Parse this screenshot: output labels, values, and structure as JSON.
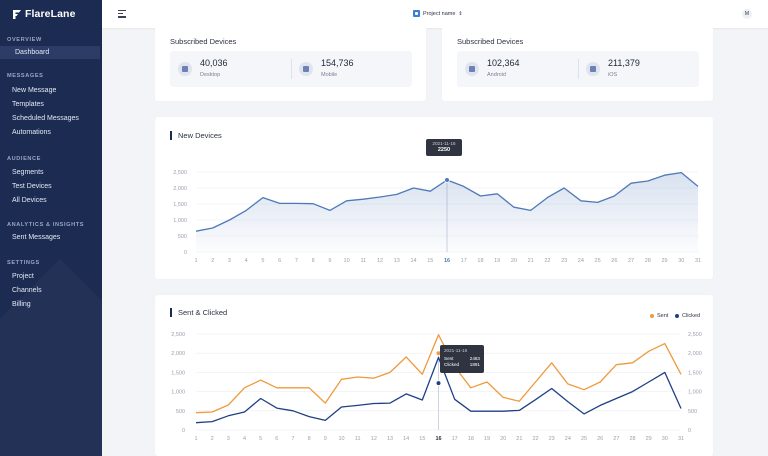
{
  "app": {
    "name": "FlareLane"
  },
  "sidebar": {
    "sections": [
      {
        "label": "OVERVIEW",
        "items": [
          {
            "label": "Dashboard",
            "active": true
          }
        ]
      },
      {
        "label": "MESSAGES",
        "items": [
          {
            "label": "New Message"
          },
          {
            "label": "Templates"
          },
          {
            "label": "Scheduled Messages"
          },
          {
            "label": "Automations"
          }
        ]
      },
      {
        "label": "AUDIENCE",
        "items": [
          {
            "label": "Segments"
          },
          {
            "label": "Test Devices"
          },
          {
            "label": "All Devices"
          }
        ]
      },
      {
        "label": "ANALYTICS & INSIGHTS",
        "items": [
          {
            "label": "Sent Messages"
          }
        ]
      },
      {
        "label": "SETTINGS",
        "items": [
          {
            "label": "Project"
          },
          {
            "label": "Channels"
          },
          {
            "label": "Billing"
          }
        ]
      }
    ]
  },
  "topbar": {
    "project_label": "Project name",
    "avatar_initial": "M"
  },
  "subscribed": [
    {
      "title": "Subscribed Devices",
      "stats": [
        {
          "value": "40,036",
          "label": "Desktop",
          "icon": "desktop-icon"
        },
        {
          "value": "154,736",
          "label": "Mobile",
          "icon": "mobile-icon"
        }
      ]
    },
    {
      "title": "Subscribed Devices",
      "stats": [
        {
          "value": "102,364",
          "label": "Android",
          "icon": "android-icon"
        },
        {
          "value": "211,379",
          "label": "iOS",
          "icon": "apple-icon"
        }
      ]
    }
  ],
  "new_devices": {
    "title": "New Devices",
    "tooltip": {
      "date": "2021-11-16",
      "value": "2250"
    },
    "highlight_index": 15
  },
  "sent_clicked": {
    "title": "Sent & Clicked",
    "legend": {
      "sent": "Sent",
      "clicked": "Clicked"
    },
    "tooltip": {
      "date": "2021-11-16",
      "sent_label": "Sent",
      "sent_value": "2483",
      "clicked_label": "Clicked",
      "clicked_value": "1891"
    },
    "highlight_index": 15
  },
  "colors": {
    "sidebar": "#1c2b52",
    "line_blue": "#4f79b8",
    "sent": "#ef9a3c",
    "clicked": "#1f3f86"
  },
  "chart_data": [
    {
      "type": "area",
      "title": "New Devices",
      "categories": [
        "1",
        "2",
        "3",
        "4",
        "5",
        "6",
        "7",
        "8",
        "9",
        "10",
        "11",
        "12",
        "13",
        "14",
        "15",
        "16",
        "17",
        "18",
        "19",
        "20",
        "21",
        "22",
        "23",
        "24",
        "25",
        "26",
        "27",
        "28",
        "29",
        "30",
        "31"
      ],
      "ylim": [
        0,
        3000
      ],
      "yticks": [
        "0",
        "500",
        "1,000",
        "1,500",
        "2,000",
        "2,500"
      ],
      "series": [
        {
          "values": [
            650,
            750,
            1000,
            1300,
            1700,
            1520,
            1520,
            1510,
            1300,
            1600,
            1650,
            1720,
            1800,
            2000,
            1900,
            2250,
            2050,
            1750,
            1820,
            1400,
            1300,
            1700,
            2000,
            1600,
            1550,
            1750,
            2150,
            2220,
            2400,
            2480,
            2050
          ]
        }
      ],
      "grid": true
    },
    {
      "type": "line",
      "title": "Sent & Clicked",
      "categories": [
        "1",
        "2",
        "3",
        "4",
        "5",
        "6",
        "7",
        "8",
        "9",
        "10",
        "11",
        "12",
        "13",
        "14",
        "15",
        "16",
        "17",
        "18",
        "19",
        "20",
        "21",
        "22",
        "23",
        "24",
        "25",
        "26",
        "27",
        "28",
        "29",
        "30",
        "31"
      ],
      "ylim": [
        0,
        2500
      ],
      "yticks": [
        "0",
        "500",
        "1,000",
        "1,500",
        "2,000",
        "2,500"
      ],
      "series": [
        {
          "name": "Sent",
          "values": [
            450,
            470,
            650,
            1100,
            1300,
            1100,
            1100,
            1100,
            700,
            1320,
            1380,
            1350,
            1500,
            1900,
            1450,
            2483,
            1650,
            1100,
            1250,
            850,
            750,
            1250,
            1750,
            1200,
            1050,
            1250,
            1700,
            1750,
            2050,
            2250,
            1450
          ]
        },
        {
          "name": "Clicked",
          "values": [
            190,
            220,
            370,
            470,
            820,
            570,
            500,
            350,
            250,
            600,
            640,
            690,
            700,
            940,
            780,
            1891,
            800,
            490,
            490,
            490,
            510,
            790,
            1080,
            740,
            420,
            640,
            820,
            1000,
            1250,
            1500,
            560
          ]
        }
      ],
      "legend": "top-right",
      "grid": true
    }
  ]
}
